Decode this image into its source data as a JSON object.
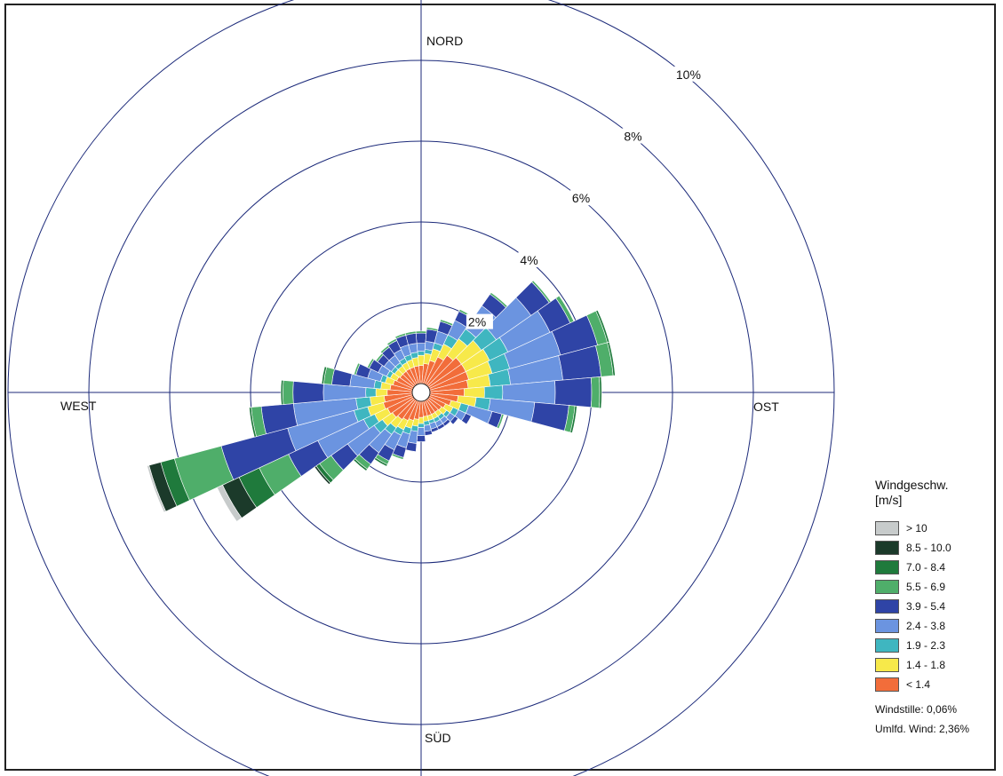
{
  "chart_data": {
    "type": "wind-rose",
    "directions": {
      "north": "NORD",
      "east": "OST",
      "south": "SÜD",
      "west": "WEST"
    },
    "ring_values": [
      2,
      4,
      6,
      8,
      10
    ],
    "ring_labels": [
      "2%",
      "4%",
      "6%",
      "8%",
      "10%"
    ],
    "legend_title": "Windgeschw.",
    "legend_unit": "[m/s]",
    "bins": [
      {
        "label": "< 1.4",
        "color": "#f26d3a"
      },
      {
        "label": "1.4 - 1.8",
        "color": "#f7e94a"
      },
      {
        "label": "1.9 - 2.3",
        "color": "#3fb6c0"
      },
      {
        "label": "2.4 - 3.8",
        "color": "#6b94e0"
      },
      {
        "label": "3.9 - 5.4",
        "color": "#2f44a6"
      },
      {
        "label": "5.5 - 6.9",
        "color": "#4fae6a"
      },
      {
        "label": "7.0 - 8.4",
        "color": "#1f7a3c"
      },
      {
        "label": "8.5 - 10.0",
        "color": "#1b3a2a"
      },
      {
        "label": "> 10",
        "color": "#c7cbcb"
      }
    ],
    "sector_width_deg": 10,
    "sectors": [
      {
        "dir": 0,
        "cum": [
          0.45,
          0.7,
          0.8,
          1.0,
          1.25,
          1.3,
          1.3,
          1.3,
          1.3
        ]
      },
      {
        "dir": 10,
        "cum": [
          0.5,
          0.75,
          0.85,
          1.05,
          1.35,
          1.4,
          1.4,
          1.4,
          1.4
        ]
      },
      {
        "dir": 20,
        "cum": [
          0.6,
          0.9,
          1.05,
          1.35,
          1.6,
          1.65,
          1.65,
          1.65,
          1.65
        ]
      },
      {
        "dir": 30,
        "cum": [
          0.75,
          1.1,
          1.35,
          1.75,
          2.0,
          2.05,
          2.05,
          2.05,
          2.05
        ]
      },
      {
        "dir": 40,
        "cum": [
          0.9,
          1.4,
          1.7,
          2.4,
          2.75,
          2.8,
          2.8,
          2.8,
          2.8
        ]
      },
      {
        "dir": 50,
        "cum": [
          1.0,
          1.6,
          2.05,
          3.1,
          3.65,
          3.7,
          3.7,
          3.7,
          3.7
        ]
      },
      {
        "dir": 60,
        "cum": [
          1.0,
          1.65,
          2.15,
          3.3,
          3.85,
          3.95,
          3.95,
          3.95,
          3.95
        ]
      },
      {
        "dir": 70,
        "cum": [
          1.0,
          1.6,
          2.05,
          3.35,
          4.3,
          4.55,
          4.6,
          4.6,
          4.6
        ]
      },
      {
        "dir": 80,
        "cum": [
          0.95,
          1.5,
          2.0,
          3.3,
          4.25,
          4.55,
          4.6,
          4.6,
          4.6
        ]
      },
      {
        "dir": 90,
        "cum": [
          0.85,
          1.35,
          1.8,
          3.1,
          4.0,
          4.2,
          4.25,
          4.25,
          4.25
        ]
      },
      {
        "dir": 100,
        "cum": [
          0.7,
          1.15,
          1.5,
          2.6,
          3.45,
          3.6,
          3.65,
          3.65,
          3.65
        ]
      },
      {
        "dir": 110,
        "cum": [
          0.55,
          0.8,
          1.0,
          1.6,
          1.85,
          1.9,
          1.9,
          1.9,
          1.9
        ]
      },
      {
        "dir": 120,
        "cum": [
          0.45,
          0.65,
          0.8,
          1.0,
          1.15,
          1.15,
          1.15,
          1.15,
          1.15
        ]
      },
      {
        "dir": 130,
        "cum": [
          0.4,
          0.55,
          0.65,
          0.8,
          0.9,
          0.9,
          0.9,
          0.9,
          0.9
        ]
      },
      {
        "dir": 140,
        "cum": [
          0.38,
          0.5,
          0.6,
          0.72,
          0.8,
          0.8,
          0.8,
          0.8,
          0.8
        ]
      },
      {
        "dir": 150,
        "cum": [
          0.38,
          0.5,
          0.6,
          0.72,
          0.8,
          0.8,
          0.8,
          0.8,
          0.8
        ]
      },
      {
        "dir": 160,
        "cum": [
          0.38,
          0.5,
          0.58,
          0.72,
          0.8,
          0.8,
          0.8,
          0.8,
          0.8
        ]
      },
      {
        "dir": 170,
        "cum": [
          0.38,
          0.5,
          0.6,
          0.75,
          0.85,
          0.85,
          0.85,
          0.85,
          0.85
        ]
      },
      {
        "dir": 180,
        "cum": [
          0.4,
          0.55,
          0.65,
          0.85,
          1.0,
          1.0,
          1.0,
          1.0,
          1.0
        ]
      },
      {
        "dir": 190,
        "cum": [
          0.45,
          0.62,
          0.75,
          1.05,
          1.25,
          1.25,
          1.25,
          1.25,
          1.25
        ]
      },
      {
        "dir": 200,
        "cum": [
          0.5,
          0.7,
          0.85,
          1.2,
          1.45,
          1.5,
          1.5,
          1.5,
          1.5
        ]
      },
      {
        "dir": 210,
        "cum": [
          0.55,
          0.8,
          0.95,
          1.35,
          1.65,
          1.75,
          1.8,
          1.8,
          1.8
        ]
      },
      {
        "dir": 220,
        "cum": [
          0.6,
          0.85,
          1.05,
          1.6,
          1.95,
          2.1,
          2.15,
          2.15,
          2.15
        ]
      },
      {
        "dir": 230,
        "cum": [
          0.65,
          0.95,
          1.2,
          2.0,
          2.5,
          2.85,
          2.95,
          3.0,
          3.0
        ]
      },
      {
        "dir": 240,
        "cum": [
          0.7,
          1.05,
          1.35,
          2.6,
          3.4,
          4.2,
          4.75,
          5.2,
          5.35
        ]
      },
      {
        "dir": 250,
        "cum": [
          0.75,
          1.15,
          1.5,
          3.2,
          4.9,
          6.1,
          6.45,
          6.75,
          6.8
        ]
      },
      {
        "dir": 260,
        "cum": [
          0.7,
          1.05,
          1.4,
          2.95,
          3.75,
          4.0,
          4.05,
          4.05,
          4.05
        ]
      },
      {
        "dir": 270,
        "cum": [
          0.62,
          0.9,
          1.15,
          2.2,
          2.95,
          3.2,
          3.25,
          3.25,
          3.25
        ]
      },
      {
        "dir": 280,
        "cum": [
          0.55,
          0.78,
          0.95,
          1.55,
          2.0,
          2.2,
          2.25,
          2.25,
          2.25
        ]
      },
      {
        "dir": 290,
        "cum": [
          0.5,
          0.7,
          0.82,
          1.15,
          1.45,
          1.5,
          1.5,
          1.5,
          1.5
        ]
      },
      {
        "dir": 300,
        "cum": [
          0.45,
          0.62,
          0.72,
          0.95,
          1.2,
          1.25,
          1.25,
          1.25,
          1.25
        ]
      },
      {
        "dir": 310,
        "cum": [
          0.42,
          0.58,
          0.68,
          0.9,
          1.1,
          1.15,
          1.15,
          1.15,
          1.15
        ]
      },
      {
        "dir": 320,
        "cum": [
          0.42,
          0.58,
          0.68,
          0.9,
          1.15,
          1.2,
          1.2,
          1.2,
          1.2
        ]
      },
      {
        "dir": 330,
        "cum": [
          0.43,
          0.6,
          0.72,
          0.95,
          1.2,
          1.25,
          1.25,
          1.25,
          1.25
        ]
      },
      {
        "dir": 340,
        "cum": [
          0.43,
          0.62,
          0.75,
          1.0,
          1.25,
          1.3,
          1.3,
          1.3,
          1.3
        ]
      },
      {
        "dir": 350,
        "cum": [
          0.44,
          0.65,
          0.78,
          1.0,
          1.25,
          1.3,
          1.3,
          1.3,
          1.3
        ]
      }
    ],
    "calm": "Windstille: 0,06%",
    "variable": "Umlfd. Wind: 2,36%"
  }
}
